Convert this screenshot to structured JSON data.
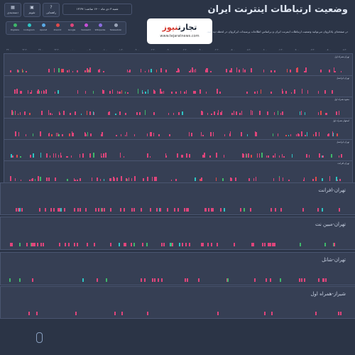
{
  "toolbar": [
    {
      "label": "دسته‌بندی",
      "icon": "grid-icon"
    },
    {
      "label": "تقویم",
      "icon": "calendar-icon"
    },
    {
      "label": "راهنمایی",
      "icon": "question-icon"
    }
  ],
  "date_text": "شنبه ۳ دی ماه ۱۴۰۰ ساعت: ۱۳:۳۷",
  "title": "وضعیت ارتباطات اینترنت ایران",
  "description": "در صفحه‌ای پادکروان می‌توانید وضعیت ارتباطات اینترنت ایران و براساس اطلاعات پرسیدات ایرکروان در لحظه دید کنید.",
  "brand": {
    "name_part1": "تجارت",
    "name_part2": "نیوز",
    "url": "www.tejaratnews.com"
  },
  "legend": [
    {
      "label": "Digikala",
      "color": "#3fb86a"
    },
    {
      "label": "Instagram",
      "color": "#2ec4c4"
    },
    {
      "label": "Aparat",
      "color": "#5aa9e6"
    },
    {
      "label": "Zoomit",
      "color": "#e04a4a"
    },
    {
      "label": "Google",
      "color": "#e0457b"
    },
    {
      "label": "Varzesh3",
      "color": "#c84fd8"
    },
    {
      "label": "Wikipedia",
      "color": "#8b6de0"
    },
    {
      "label": "Telewebion",
      "color": "#9aa4b8"
    }
  ],
  "time_ticks": [
    "۲۲:۰۰",
    "۲۲:۳۰",
    "۲۳:۰۰",
    "۲۳:۳۰",
    "۰۰:۰۰",
    "۰۰:۳۰",
    "۰۱:۰۰",
    "۰۱:۳۰",
    "۰۲:۰۰",
    "۰۲:۳۰",
    "۰۳:۰۰",
    "۰۳:۳۰",
    "۰۴:۰۰",
    "۰۴:۳۰",
    "۰۵:۰۰",
    "۰۵:۳۰",
    "۰۶:۰۰",
    "۰۶:۳۰",
    "۰۷:۰۰",
    "۰۷:۳۰",
    "۰۸:۰۰",
    "۰۸:۳۰"
  ],
  "small_panels": [
    "تهران-همراه اول",
    "تهران-ایرانسل",
    "مشهد-همراه اول",
    "اصفهان-همراه اول",
    "تهران-ایرانسل",
    "تهران-افرانت"
  ],
  "big_panels": [
    "تهران-افرانت",
    "تهران-مبین نت",
    "تهران-شاتل",
    "شیراز-همراه اول"
  ],
  "colors": {
    "bg": "#2b3446",
    "panel": "#363f54",
    "border": "#4a5570",
    "pink": "#e0457b",
    "green": "#3fb86a",
    "cyan": "#2ec4c4",
    "red": "#e04a4a"
  }
}
